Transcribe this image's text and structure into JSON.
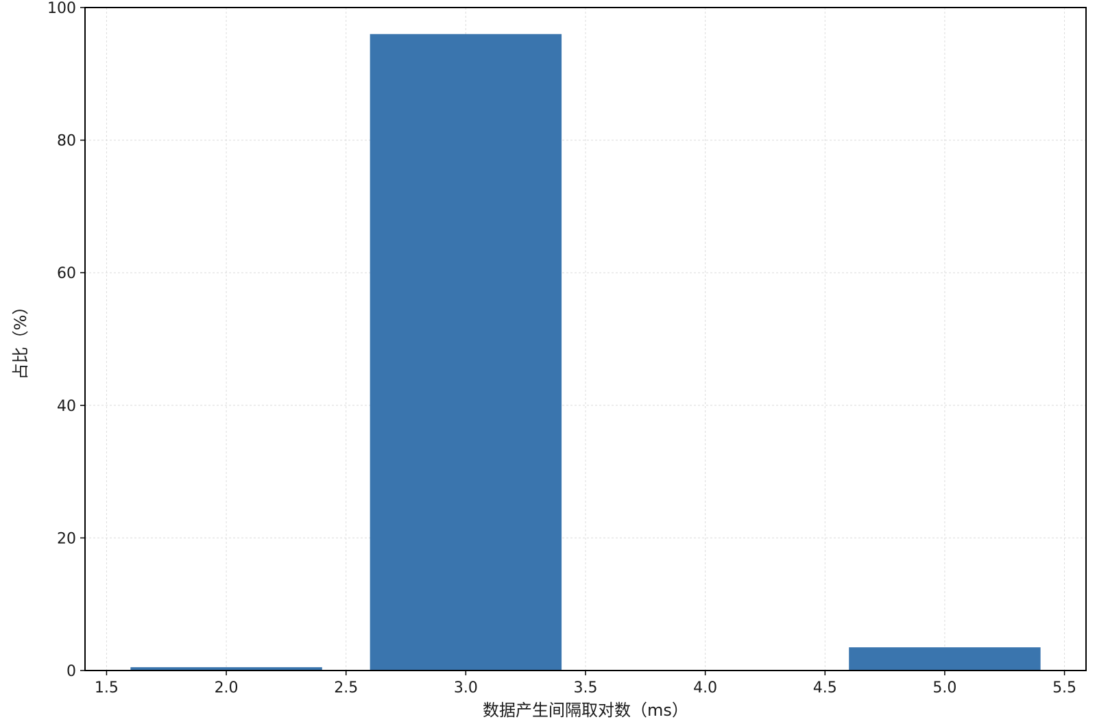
{
  "chart_data": {
    "type": "bar",
    "title": "",
    "xlabel": "数据产生间隔取对数（ms）",
    "ylabel": "占比（%）",
    "x": [
      2.0,
      3.0,
      5.0
    ],
    "values": [
      0.5,
      96.0,
      3.5
    ],
    "bar_width": 0.8,
    "xlim": [
      1.41,
      5.59
    ],
    "ylim": [
      0,
      100
    ],
    "xticks": [
      1.5,
      2.0,
      2.5,
      3.0,
      3.5,
      4.0,
      4.5,
      5.0,
      5.5
    ],
    "xtick_labels": [
      "1.5",
      "2.0",
      "2.5",
      "3.0",
      "3.5",
      "4.0",
      "4.5",
      "5.0",
      "5.5"
    ],
    "yticks": [
      0,
      20,
      40,
      60,
      80,
      100
    ],
    "ytick_labels": [
      "0",
      "20",
      "40",
      "60",
      "80",
      "100"
    ],
    "grid": true,
    "bar_color": "#3a75ae"
  }
}
